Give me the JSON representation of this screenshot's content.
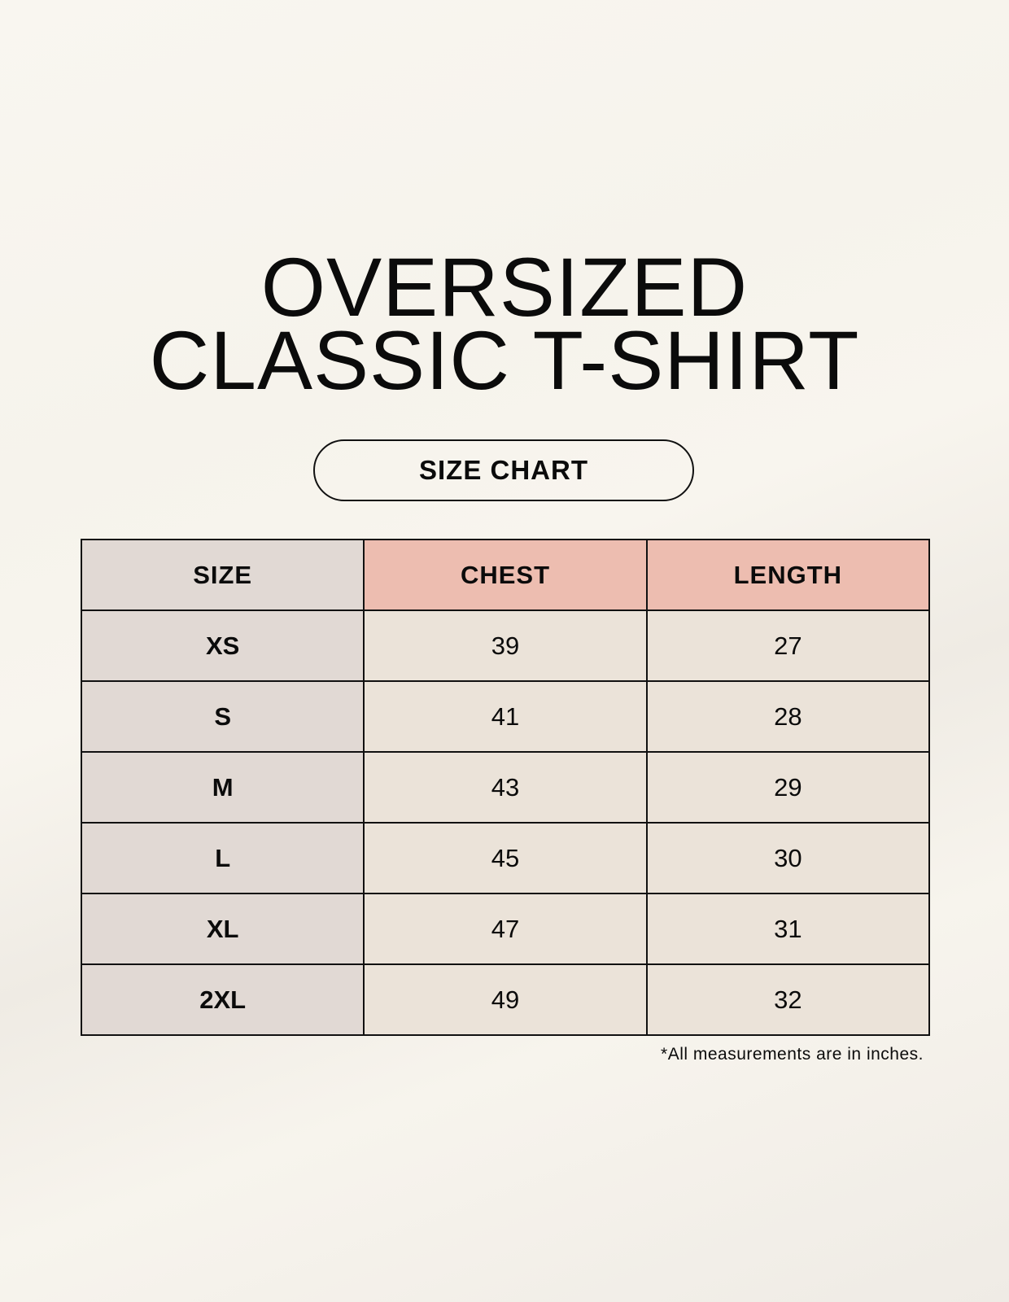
{
  "title": {
    "line1": "OVERSIZED",
    "line2": "CLASSIC T-SHIRT"
  },
  "badge": "SIZE CHART",
  "colors": {
    "header_size": "#e1d9d4",
    "header_measure": "#edbdb0",
    "cell": "#ebe3d9"
  },
  "table": {
    "headers": [
      "SIZE",
      "CHEST",
      "LENGTH"
    ],
    "rows": [
      [
        "XS",
        "39",
        "27"
      ],
      [
        "S",
        "41",
        "28"
      ],
      [
        "M",
        "43",
        "29"
      ],
      [
        "L",
        "45",
        "30"
      ],
      [
        "XL",
        "47",
        "31"
      ],
      [
        "2XL",
        "49",
        "32"
      ]
    ]
  },
  "footnote": "*All measurements are in inches."
}
